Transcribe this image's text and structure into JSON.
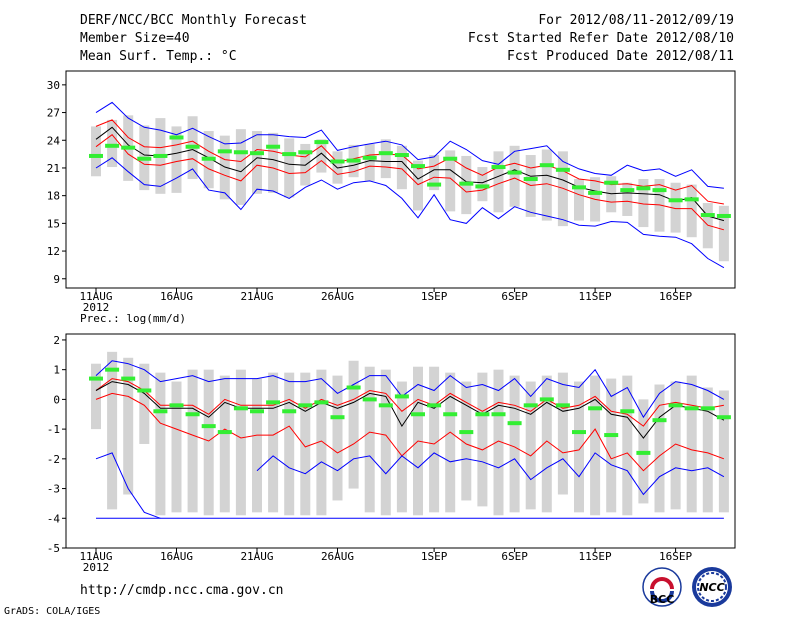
{
  "header": {
    "title": "DERF/NCC/BCC Monthly Forecast",
    "member_size": "Member Size=40",
    "variable": "Mean Surf. Temp.: °C",
    "period": "For 2012/08/11-2012/09/19",
    "refer_date": "Fcst Started Refer Date 2012/08/10",
    "produced_date": "Fcst Produced Date 2012/08/11"
  },
  "footer": {
    "url": "http://cmdp.ncc.cma.gov.cn",
    "credit": "GrADS: COLA/IGES",
    "logo_bcc": "BCC",
    "logo_ncc": "NCC"
  },
  "colors": {
    "box": "#d3d3d3",
    "max_line": "#0000ff",
    "p_line": "#ff0000",
    "mean_line": "#000000",
    "obs_mark": "#33ee33"
  },
  "chart_data": [
    {
      "type": "line",
      "name": "temperature",
      "title": "Mean Surf. Temp.: °C",
      "ylim": [
        8,
        31.5
      ],
      "yticks": [
        9,
        12,
        15,
        18,
        21,
        24,
        27,
        30
      ],
      "xlim": [
        0,
        40
      ],
      "x_ticks": [
        {
          "x": 0,
          "label": "11AUG"
        },
        {
          "x": 5,
          "label": "16AUG"
        },
        {
          "x": 10,
          "label": "21AUG"
        },
        {
          "x": 15,
          "label": "26AUG"
        },
        {
          "x": 21,
          "label": "1SEP"
        },
        {
          "x": 26,
          "label": "6SEP"
        },
        {
          "x": 31,
          "label": "11SEP"
        },
        {
          "x": 36,
          "label": "16SEP"
        }
      ],
      "year_label": "2012",
      "series": [
        {
          "name": "max",
          "values": [
            27.0,
            28.1,
            26.4,
            25.4,
            25.1,
            24.6,
            25.3,
            24.4,
            23.6,
            23.7,
            24.6,
            24.6,
            24.4,
            24.3,
            25.1,
            22.9,
            23.3,
            23.6,
            23.9,
            23.5,
            21.9,
            22.2,
            23.9,
            23.0,
            21.8,
            21.4,
            22.8,
            23.1,
            23.4,
            21.7,
            20.9,
            20.4,
            20.2,
            21.3,
            20.7,
            20.9,
            20.1,
            20.8,
            19.0,
            18.8
          ]
        },
        {
          "name": "p_upper",
          "values": [
            25.5,
            26.2,
            24.3,
            23.3,
            23.2,
            23.5,
            23.9,
            22.8,
            21.9,
            21.7,
            23.0,
            22.8,
            22.4,
            22.2,
            23.4,
            21.6,
            22.0,
            22.4,
            22.5,
            22.4,
            20.9,
            21.2,
            22.1,
            21.0,
            20.2,
            21.1,
            21.5,
            21.0,
            21.3,
            20.7,
            19.8,
            19.6,
            19.2,
            19.3,
            19.0,
            19.2,
            18.6,
            19.1,
            17.4,
            17.1
          ]
        },
        {
          "name": "mean",
          "values": [
            24.1,
            25.4,
            23.5,
            22.4,
            22.3,
            22.6,
            23.0,
            22.1,
            21.1,
            20.6,
            22.1,
            21.9,
            21.4,
            21.3,
            22.6,
            21.0,
            21.3,
            21.8,
            21.7,
            21.7,
            19.8,
            20.8,
            20.8,
            19.5,
            19.4,
            20.1,
            20.8,
            20.1,
            20.2,
            19.7,
            18.9,
            18.5,
            18.2,
            18.3,
            18.2,
            18.1,
            17.4,
            17.8,
            15.8,
            15.3
          ]
        },
        {
          "name": "p_lower",
          "values": [
            23.3,
            24.6,
            22.5,
            21.4,
            21.3,
            21.7,
            22.0,
            20.9,
            20.2,
            19.6,
            21.3,
            21.0,
            20.4,
            20.5,
            21.8,
            20.3,
            20.6,
            21.2,
            21.1,
            20.9,
            19.2,
            20.0,
            19.9,
            18.4,
            18.6,
            19.3,
            19.9,
            19.1,
            19.3,
            18.8,
            18.1,
            17.6,
            17.3,
            17.4,
            17.1,
            17.0,
            16.6,
            16.6,
            14.8,
            14.3
          ]
        },
        {
          "name": "min",
          "values": [
            21.0,
            22.1,
            20.6,
            19.2,
            19.0,
            19.9,
            20.9,
            18.6,
            18.3,
            16.5,
            18.7,
            18.5,
            17.7,
            18.9,
            19.7,
            18.7,
            19.4,
            19.6,
            19.1,
            17.7,
            15.6,
            18.1,
            15.4,
            15.0,
            16.7,
            15.5,
            16.8,
            16.2,
            15.8,
            15.4,
            14.8,
            14.7,
            15.2,
            15.1,
            13.8,
            13.6,
            13.5,
            12.8,
            11.2,
            10.2
          ]
        },
        {
          "name": "observed",
          "values": [
            22.3,
            23.4,
            23.2,
            22.0,
            22.3,
            24.3,
            23.3,
            22.0,
            22.8,
            22.7,
            22.6,
            23.3,
            22.5,
            22.7,
            23.8,
            21.7,
            21.8,
            22.1,
            22.6,
            22.4,
            21.2,
            19.2,
            22.0,
            19.3,
            19.0,
            21.1,
            20.5,
            19.8,
            21.3,
            20.8,
            18.9,
            18.3,
            19.4,
            18.6,
            18.8,
            18.6,
            17.5,
            17.6,
            15.9,
            15.8
          ]
        }
      ],
      "box_upper": [
        25.5,
        26.2,
        26.7,
        25.6,
        26.4,
        25.5,
        26.6,
        25.0,
        24.5,
        25.2,
        25.0,
        24.8,
        24.2,
        23.6,
        24.1,
        22.8,
        23.5,
        23.6,
        24.1,
        23.4,
        21.8,
        22.4,
        22.9,
        22.3,
        21.1,
        22.8,
        23.4,
        22.4,
        23.0,
        22.8,
        19.8,
        20.0,
        20.1,
        19.4,
        19.8,
        19.8,
        19.4,
        19.2,
        17.2,
        16.9
      ],
      "box_lower": [
        20.1,
        21.1,
        19.6,
        18.6,
        18.2,
        18.3,
        19.8,
        18.8,
        17.6,
        17.0,
        18.2,
        18.3,
        17.8,
        19.1,
        20.5,
        19.3,
        20.0,
        19.6,
        19.9,
        18.7,
        16.4,
        18.6,
        16.3,
        16.0,
        17.4,
        16.2,
        16.8,
        15.7,
        15.3,
        14.7,
        15.3,
        15.2,
        16.2,
        15.8,
        14.6,
        14.1,
        14.0,
        13.5,
        12.3,
        10.9
      ]
    },
    {
      "type": "line",
      "name": "precipitation",
      "title": "Prec.: log(mm/d)",
      "ylim": [
        -5,
        2.2
      ],
      "yticks": [
        -5,
        -4,
        -3,
        -2,
        -1,
        0,
        1,
        2
      ],
      "xlim": [
        0,
        40
      ],
      "x_ticks": [
        {
          "x": 0,
          "label": "11AUG"
        },
        {
          "x": 5,
          "label": "16AUG"
        },
        {
          "x": 10,
          "label": "21AUG"
        },
        {
          "x": 15,
          "label": "26AUG"
        },
        {
          "x": 21,
          "label": "1SEP"
        },
        {
          "x": 26,
          "label": "6SEP"
        },
        {
          "x": 31,
          "label": "11SEP"
        },
        {
          "x": 36,
          "label": "16SEP"
        }
      ],
      "year_label": "2012",
      "series": [
        {
          "name": "max",
          "values": [
            0.8,
            1.3,
            1.2,
            1.0,
            0.6,
            0.7,
            0.8,
            0.6,
            0.7,
            0.7,
            0.7,
            0.8,
            0.6,
            0.6,
            0.7,
            0.2,
            0.5,
            0.8,
            0.8,
            0.1,
            0.5,
            0.3,
            0.8,
            0.4,
            0.5,
            0.3,
            0.7,
            0.1,
            0.7,
            0.5,
            0.4,
            1.0,
            0.1,
            0.4,
            -0.6,
            0.2,
            0.6,
            0.5,
            0.3,
            0.0
          ]
        },
        {
          "name": "p_upper",
          "values": [
            0.3,
            0.7,
            0.6,
            0.3,
            -0.2,
            -0.2,
            -0.2,
            -0.5,
            0.0,
            -0.2,
            -0.2,
            -0.2,
            0.0,
            -0.3,
            0.0,
            -0.2,
            0.0,
            0.3,
            0.2,
            -0.4,
            0.0,
            -0.2,
            0.2,
            -0.1,
            -0.4,
            -0.1,
            -0.2,
            -0.4,
            0.0,
            -0.3,
            -0.2,
            0.1,
            -0.4,
            -0.5,
            -0.9,
            -0.2,
            -0.1,
            -0.2,
            -0.3,
            -0.2
          ]
        },
        {
          "name": "mean",
          "values": [
            0.3,
            0.6,
            0.5,
            0.2,
            -0.3,
            -0.3,
            -0.3,
            -0.6,
            -0.1,
            -0.3,
            -0.3,
            -0.3,
            -0.1,
            -0.4,
            -0.1,
            -0.3,
            -0.1,
            0.2,
            0.1,
            -0.9,
            -0.1,
            -0.3,
            0.1,
            -0.2,
            -0.5,
            -0.2,
            -0.3,
            -0.5,
            -0.1,
            -0.4,
            -0.3,
            0.0,
            -0.5,
            -0.6,
            -1.3,
            -0.6,
            -0.2,
            -0.3,
            -0.4,
            -0.7
          ]
        },
        {
          "name": "p_lower",
          "values": [
            0.0,
            0.2,
            0.1,
            -0.2,
            -0.8,
            -1.0,
            -1.2,
            -1.4,
            -1.0,
            -1.3,
            -1.2,
            -1.2,
            -0.9,
            -1.6,
            -1.4,
            -1.8,
            -1.5,
            -1.1,
            -1.2,
            -1.9,
            -1.4,
            -1.5,
            -1.1,
            -1.5,
            -1.7,
            -1.4,
            -1.6,
            -1.9,
            -1.4,
            -1.8,
            -1.7,
            -1.0,
            -2.0,
            -1.8,
            -2.4,
            -1.9,
            -1.5,
            -1.7,
            -1.8,
            -2.0
          ]
        },
        {
          "name": "min",
          "values": [
            -2.0,
            -1.8,
            -3.0,
            -3.8,
            -4.0,
            null,
            null,
            null,
            null,
            null,
            -2.4,
            -1.9,
            -2.3,
            -2.5,
            -2.1,
            -2.4,
            -2.0,
            -1.9,
            -2.5,
            -1.9,
            -2.3,
            -1.8,
            -2.1,
            -2.0,
            -2.1,
            -2.3,
            -2.0,
            -2.7,
            -2.3,
            -2.0,
            -2.6,
            -1.8,
            -2.2,
            -2.4,
            -3.2,
            -2.6,
            -2.3,
            -2.4,
            -2.3,
            -2.6
          ]
        },
        {
          "name": "min_floor",
          "values": [
            -4,
            -4,
            -4,
            -4,
            -4,
            -4,
            -4,
            -4,
            -4,
            -4,
            -4,
            -4,
            -4,
            -4,
            -4,
            -4,
            -4,
            -4,
            -4,
            -4,
            -4,
            -4,
            -4,
            -4,
            -4,
            -4,
            -4,
            -4,
            -4,
            -4,
            -4,
            -4,
            -4,
            -4,
            -4,
            -4,
            -4,
            -4,
            -4,
            -4
          ]
        },
        {
          "name": "observed",
          "values": [
            0.7,
            1.0,
            0.7,
            0.3,
            -0.4,
            -0.2,
            -0.5,
            -0.9,
            -1.1,
            -0.3,
            -0.4,
            -0.1,
            -0.4,
            -0.2,
            -0.1,
            -0.6,
            0.4,
            0.0,
            -0.2,
            0.1,
            -0.5,
            -0.2,
            -0.5,
            -1.1,
            -0.5,
            -0.5,
            -0.8,
            -0.2,
            0.0,
            -0.2,
            -1.1,
            -0.3,
            -1.2,
            -0.4,
            -1.8,
            -0.7,
            -0.2,
            -0.3,
            -0.3,
            -0.6
          ]
        }
      ],
      "box_upper": [
        1.2,
        1.6,
        1.4,
        1.2,
        0.9,
        0.6,
        1.0,
        1.0,
        0.8,
        1.0,
        0.7,
        0.9,
        0.9,
        0.9,
        1.0,
        0.8,
        1.3,
        1.1,
        1.0,
        0.6,
        1.1,
        1.1,
        0.9,
        0.6,
        0.9,
        1.0,
        0.8,
        0.6,
        0.8,
        0.9,
        0.6,
        0.8,
        0.7,
        0.8,
        0.0,
        0.5,
        0.6,
        0.8,
        0.4,
        0.3
      ],
      "box_lower": [
        -1.0,
        -3.7,
        -3.2,
        -1.5,
        -3.9,
        -3.8,
        -3.8,
        -3.9,
        -3.8,
        -3.9,
        -3.8,
        -3.8,
        -3.9,
        -3.9,
        -3.9,
        -3.4,
        -3.0,
        -3.8,
        -3.9,
        -3.8,
        -3.9,
        -3.8,
        -3.8,
        -3.4,
        -3.6,
        -3.9,
        -3.8,
        -3.7,
        -3.8,
        -3.2,
        -3.8,
        -3.9,
        -3.8,
        -3.9,
        -3.5,
        -3.8,
        -3.7,
        -3.8,
        -3.8,
        -3.8
      ]
    }
  ]
}
